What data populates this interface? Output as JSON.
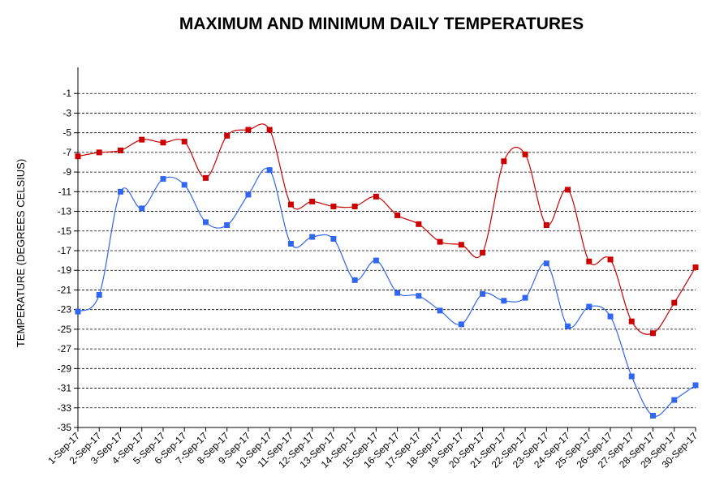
{
  "chart_data": {
    "type": "line",
    "title": "MAXIMUM AND MINIMUM DAILY TEMPERATURES",
    "xlabel": "",
    "ylabel": "TEMPERATURE (DEGREES CELSIUS)",
    "ylim": [
      -35,
      1
    ],
    "yticks": [
      -1,
      -3,
      -5,
      -7,
      -9,
      -11,
      -13,
      -15,
      -17,
      -19,
      -21,
      -23,
      -25,
      -27,
      -29,
      -31,
      -33,
      -35
    ],
    "grid": true,
    "categories": [
      "1-Sep-17",
      "2-Sep-17",
      "3-Sep-17",
      "4-Sep-17",
      "5-Sep-17",
      "6-Sep-17",
      "7-Sep-17",
      "8-Sep-17",
      "9-Sep-17",
      "10-Sep-17",
      "11-Sep-17",
      "12-Sep-17",
      "13-Sep-17",
      "14-Sep-17",
      "15-Sep-17",
      "16-Sep-17",
      "17-Sep-17",
      "18-Sep-17",
      "19-Sep-17",
      "20-Sep-17",
      "21-Sep-17",
      "22-Sep-17",
      "23-Sep-17",
      "24-Sep-17",
      "25-Sep-17",
      "26-Sep-17",
      "27-Sep-17",
      "28-Sep-17",
      "29-Sep-17",
      "30-Sep-17"
    ],
    "series": [
      {
        "color": "#cc0000",
        "values": [
          -7.4,
          -7.0,
          -6.8,
          -5.7,
          -6.0,
          -5.9,
          -9.6,
          -5.3,
          -4.7,
          -4.7,
          -12.3,
          -12.0,
          -12.5,
          -12.5,
          -11.5,
          -13.4,
          -14.3,
          -16.1,
          -16.4,
          -17.2,
          -7.9,
          -7.2,
          -14.4,
          -10.8,
          -18.1,
          -17.9,
          -24.2,
          -25.4,
          -22.3,
          -18.7
        ]
      },
      {
        "color": "#3366ee",
        "values": [
          -23.2,
          -21.5,
          -11.0,
          -12.7,
          -9.7,
          -10.3,
          -14.1,
          -14.4,
          -11.3,
          -8.8,
          -16.3,
          -15.6,
          -15.8,
          -20.0,
          -18.0,
          -21.3,
          -21.6,
          -23.1,
          -24.5,
          -21.4,
          -22.1,
          -21.8,
          -18.3,
          -24.7,
          -22.7,
          -23.7,
          -29.8,
          -33.8,
          -32.2,
          -30.7
        ]
      }
    ]
  }
}
